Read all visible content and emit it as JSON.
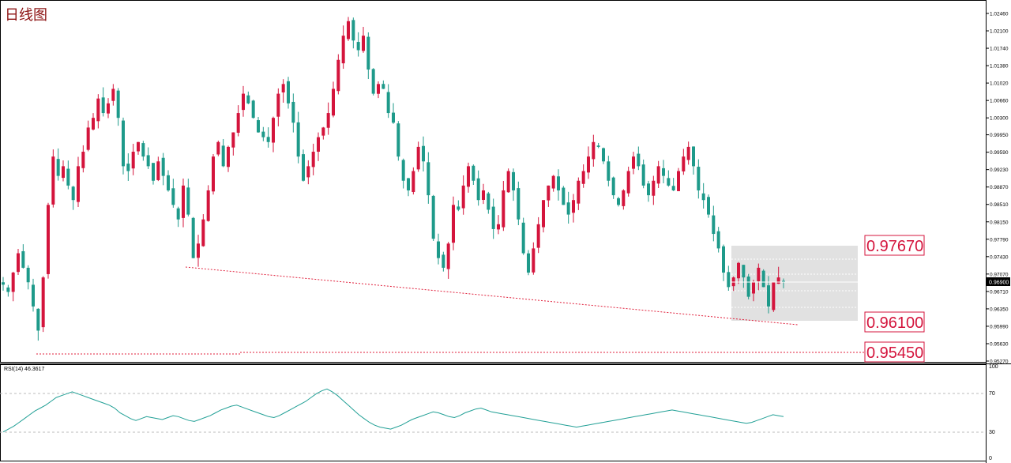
{
  "chart_title": "日线图",
  "rsi_label": "RSI(14) 46.3617",
  "price_axis_ticks": [
    "1.02460",
    "1.02100",
    "1.01740",
    "1.01380",
    "1.01020",
    "1.00660",
    "1.00300",
    "0.99950",
    "0.99590",
    "0.99230",
    "0.98870",
    "0.98510",
    "0.98150",
    "0.97790",
    "0.97430",
    "0.97070",
    "0.96710",
    "0.96350",
    "0.95990",
    "0.95630",
    "0.95270"
  ],
  "current_price": "0.96900",
  "level_labels": {
    "resistance": "0.97670",
    "support_mid": "0.96100",
    "support_low": "0.95450"
  },
  "rsi_axis_ticks": [
    "100",
    "70",
    "30",
    "0"
  ],
  "colors": {
    "bull": "#d4143c",
    "bear": "#1e9a8a",
    "trendline": "#e0203c",
    "box": "#d9d9d9",
    "rsi_line": "#22a096",
    "label_text": "#d4143c"
  },
  "chart_data": {
    "type": "candlestick",
    "title": "日线图",
    "ylim": [
      0.9527,
      1.0246
    ],
    "close_series": [
      0.9685,
      0.967,
      0.971,
      0.975,
      0.972,
      0.969,
      0.964,
      0.959,
      0.97,
      0.985,
      0.995,
      0.991,
      0.993,
      0.989,
      0.986,
      0.993,
      0.996,
      1.001,
      1.003,
      1.007,
      1.004,
      1.006,
      1.009,
      1.003,
      0.993,
      0.992,
      0.996,
      0.998,
      0.995,
      0.993,
      0.99,
      0.994,
      0.991,
      0.988,
      0.985,
      0.982,
      0.989,
      0.983,
      0.974,
      0.977,
      0.982,
      0.988,
      0.995,
      0.998,
      0.993,
      0.997,
      1.0,
      1.004,
      1.008,
      1.006,
      1.003,
      1.0,
      0.999,
      0.998,
      1.003,
      1.008,
      1.01,
      1.006,
      1.002,
      0.995,
      0.99,
      0.993,
      0.996,
      0.999,
      1.001,
      1.004,
      1.009,
      1.015,
      1.02,
      1.023,
      1.019,
      1.017,
      1.02,
      1.013,
      1.008,
      1.01,
      1.009,
      1.004,
      1.002,
      0.995,
      0.99,
      0.988,
      0.992,
      0.997,
      0.994,
      0.987,
      0.978,
      0.974,
      0.972,
      0.977,
      0.985,
      0.984,
      0.989,
      0.993,
      0.99,
      0.986,
      0.988,
      0.984,
      0.98,
      0.981,
      0.988,
      0.992,
      0.988,
      0.982,
      0.975,
      0.971,
      0.976,
      0.981,
      0.986,
      0.989,
      0.991,
      0.988,
      0.985,
      0.983,
      0.986,
      0.99,
      0.992,
      0.995,
      0.998,
      0.997,
      0.994,
      0.99,
      0.987,
      0.985,
      0.988,
      0.992,
      0.995,
      0.993,
      0.989,
      0.987,
      0.99,
      0.993,
      0.991,
      0.989,
      0.988,
      0.992,
      0.995,
      0.997,
      0.993,
      0.988,
      0.986,
      0.983,
      0.979,
      0.976,
      0.971,
      0.968,
      0.97,
      0.973,
      0.97,
      0.966,
      0.969,
      0.972,
      0.968,
      0.964,
      0.969,
      0.97,
      0.969
    ],
    "rsi": [
      30,
      33,
      36,
      40,
      44,
      48,
      52,
      55,
      58,
      62,
      66,
      68,
      70,
      72,
      70,
      68,
      66,
      64,
      62,
      60,
      58,
      55,
      50,
      47,
      44,
      42,
      44,
      46,
      45,
      44,
      43,
      45,
      47,
      46,
      44,
      42,
      41,
      43,
      45,
      47,
      50,
      53,
      55,
      57,
      58,
      56,
      54,
      52,
      50,
      48,
      46,
      45,
      47,
      50,
      53,
      56,
      59,
      62,
      66,
      70,
      73,
      75,
      72,
      68,
      63,
      58,
      53,
      48,
      44,
      40,
      37,
      35,
      34,
      33,
      35,
      37,
      40,
      43,
      45,
      47,
      49,
      51,
      50,
      48,
      46,
      45,
      47,
      50,
      52,
      54,
      55,
      53,
      51,
      50,
      49,
      48,
      47,
      46,
      45,
      44,
      43,
      42,
      41,
      40,
      39,
      38,
      37,
      36,
      35,
      36,
      37,
      38,
      39,
      40,
      41,
      42,
      43,
      44,
      45,
      46,
      47,
      48,
      49,
      50,
      51,
      52,
      53,
      52,
      51,
      50,
      49,
      48,
      47,
      46,
      45,
      44,
      43,
      42,
      41,
      40,
      39,
      40,
      42,
      44,
      46,
      48,
      47,
      46
    ],
    "levels": [
      0.9767,
      0.961,
      0.9545
    ],
    "rsi_levels": [
      70,
      30
    ],
    "rsi_ylim": [
      0,
      100
    ]
  }
}
